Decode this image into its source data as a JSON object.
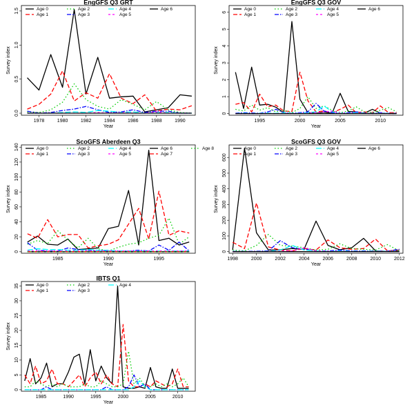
{
  "colors": {
    "Age 0": "#000000",
    "Age 1": "#ff0000",
    "Age 2": "#00cc00",
    "Age 3": "#0000ff",
    "Age 4": "#00ffff",
    "Age 5": "#ff00ff",
    "Age 6": "#000000",
    "Age 7": "#ff0000",
    "Age 8": "#00cc00"
  },
  "chart_data": [
    {
      "type": "line",
      "title": "EngGFS Q3 GRT",
      "xlabel": "Year",
      "ylabel": "Survey index",
      "xlim": [
        1976.5,
        1991.3
      ],
      "ylim": [
        -0.03,
        1.58
      ],
      "xticks": [
        1978,
        1980,
        1982,
        1984,
        1986,
        1988,
        1990
      ],
      "yticks": [
        0,
        0.5,
        1,
        1.5
      ],
      "ytick_labels": [
        "0.0",
        "0.5",
        "1.0",
        "1.5"
      ],
      "legend_columns": 3,
      "x": [
        1977,
        1978,
        1979,
        1980,
        1981,
        1982,
        1983,
        1984,
        1985,
        1986,
        1987,
        1988,
        1989,
        1990,
        1991
      ],
      "series": [
        {
          "name": "Age 0",
          "values": [
            0.52,
            0.34,
            0.86,
            0.38,
            1.52,
            0.28,
            0.82,
            0.22,
            0.24,
            0.25,
            0.02,
            0.05,
            0.08,
            0.27,
            0.25
          ]
        },
        {
          "name": "Age 1",
          "values": [
            0.06,
            0.13,
            0.28,
            0.62,
            0.18,
            0.3,
            0.22,
            0.58,
            0.22,
            0.14,
            0.27,
            0.03,
            0.06,
            0.05,
            0.11
          ]
        },
        {
          "name": "Age 2",
          "values": [
            0.02,
            0.01,
            0.05,
            0.16,
            0.43,
            0.2,
            0.1,
            0.06,
            0.2,
            0.13,
            0.05,
            0.17,
            0.05,
            0.01,
            0.0
          ]
        },
        {
          "name": "Age 3",
          "values": [
            0.03,
            0.0,
            0.01,
            0.04,
            0.06,
            0.1,
            0.05,
            0.01,
            0.02,
            0.05,
            0.01,
            0.03,
            0.03,
            0.0,
            0.0
          ]
        },
        {
          "name": "Age 4",
          "values": [
            0.0,
            0.0,
            0.0,
            0.01,
            0.02,
            0.01,
            0.04,
            0.03,
            0.01,
            0.02,
            0.0,
            0.01,
            0.01,
            0.0,
            0.0
          ]
        },
        {
          "name": "Age 5",
          "values": [
            0.0,
            0.0,
            0.0,
            0.0,
            0.0,
            0.0,
            0.01,
            0.0,
            0.01,
            0.0,
            0.0,
            0.02,
            0.0,
            0.0,
            0.0
          ]
        },
        {
          "name": "Age 6",
          "values": [
            0.0,
            0.0,
            0.0,
            0.0,
            0.0,
            0.0,
            0.0,
            0.0,
            0.0,
            0.0,
            0.0,
            0.0,
            0.0,
            0.0,
            0.0
          ]
        }
      ]
    },
    {
      "type": "line",
      "title": "EngGFS Q3 GOV",
      "xlabel": "Year",
      "ylabel": "Survey index",
      "xlim": [
        1991.2,
        2012.8
      ],
      "ylim": [
        -0.1,
        6.4
      ],
      "xticks": [
        1995,
        2000,
        2005,
        2010
      ],
      "yticks": [
        0,
        1,
        2,
        3,
        4,
        5,
        6
      ],
      "ytick_labels": [
        "0",
        "1",
        "2",
        "3",
        "4",
        "5",
        "6"
      ],
      "legend_columns": 4,
      "x": [
        1992,
        1993,
        1994,
        1995,
        1996,
        1997,
        1998,
        1999,
        2000,
        2001,
        2002,
        2003,
        2004,
        2005,
        2006,
        2007,
        2008,
        2009,
        2010,
        2011,
        2012
      ],
      "series": [
        {
          "name": "Age 0",
          "values": [
            2.45,
            0.3,
            2.75,
            0.5,
            0.55,
            0.38,
            0.05,
            5.45,
            0.85,
            0.05,
            0.02,
            0.08,
            0.02,
            1.2,
            0.12,
            0.1,
            0.02,
            0.25,
            0.02,
            0.01,
            0.02
          ]
        },
        {
          "name": "Age 1",
          "values": [
            0.55,
            0.65,
            0.1,
            1.15,
            0.4,
            0.5,
            0.15,
            0.12,
            2.45,
            0.75,
            0.1,
            0.15,
            0.05,
            0.25,
            0.5,
            0.05,
            0.1,
            0.05,
            0.45,
            0.05,
            0.05
          ]
        },
        {
          "name": "Age 2",
          "values": [
            0.25,
            0.15,
            0.5,
            0.2,
            0.35,
            0.1,
            0.2,
            0.05,
            0.3,
            1.0,
            0.3,
            0.45,
            0.2,
            0.05,
            0.15,
            0.4,
            0.1,
            0.05,
            0.2,
            0.35,
            0.1
          ]
        },
        {
          "name": "Age 3",
          "values": [
            0.02,
            0.05,
            0.03,
            0.02,
            0.1,
            0.25,
            0.05,
            0.02,
            0.05,
            0.1,
            0.6,
            0.15,
            0.05,
            0.02,
            0.05,
            0.1,
            0.03,
            0.02,
            0.05,
            0.02,
            0.01
          ]
        },
        {
          "name": "Age 4",
          "values": [
            0.0,
            0.02,
            0.0,
            0.01,
            0.03,
            0.02,
            0.05,
            0.01,
            0.02,
            0.05,
            0.1,
            0.45,
            0.1,
            0.02,
            0.02,
            0.05,
            0.02,
            0.01,
            0.02,
            0.01,
            0.0
          ]
        },
        {
          "name": "Age 5",
          "values": [
            0.0,
            0.0,
            0.0,
            0.0,
            0.01,
            0.0,
            0.02,
            0.0,
            0.01,
            0.02,
            0.05,
            0.1,
            0.15,
            0.02,
            0.01,
            0.02,
            0.01,
            0.0,
            0.01,
            0.0,
            0.0
          ]
        },
        {
          "name": "Age 6",
          "values": [
            0.0,
            0.0,
            0.0,
            0.0,
            0.0,
            0.0,
            0.0,
            0.0,
            0.0,
            0.0,
            0.0,
            0.0,
            0.0,
            0.0,
            0.0,
            0.0,
            0.0,
            0.0,
            0.0,
            0.0,
            0.0
          ]
        }
      ]
    },
    {
      "type": "line",
      "title": "ScoGFS Aberdeen Q3",
      "xlabel": "Year",
      "ylabel": "Survey index",
      "xlim": [
        1981.4,
        1998.6
      ],
      "ylim": [
        -2,
        143
      ],
      "xticks": [
        1985,
        1990,
        1995
      ],
      "yticks": [
        0,
        20,
        40,
        60,
        80,
        100,
        120,
        140
      ],
      "ytick_labels": [
        "0",
        "20",
        "40",
        "60",
        "80",
        "100",
        "120",
        "140"
      ],
      "legend_columns": 5,
      "x": [
        1982,
        1983,
        1984,
        1985,
        1986,
        1987,
        1988,
        1989,
        1990,
        1991,
        1992,
        1993,
        1994,
        1995,
        1996,
        1997,
        1998
      ],
      "series": [
        {
          "name": "Age 0",
          "values": [
            13,
            21,
            10,
            9,
            17,
            3,
            4,
            5,
            31,
            34,
            82,
            9,
            136,
            15,
            18,
            9,
            13
          ]
        },
        {
          "name": "Age 1",
          "values": [
            24,
            18,
            43,
            20,
            23,
            23,
            5,
            8,
            10,
            16,
            37,
            58,
            17,
            81,
            22,
            28,
            25
          ]
        },
        {
          "name": "Age 2",
          "values": [
            10,
            15,
            11,
            28,
            16,
            5,
            18,
            4,
            1,
            6,
            10,
            12,
            18,
            22,
            45,
            10,
            20
          ]
        },
        {
          "name": "Age 3",
          "values": [
            12,
            2,
            1,
            1,
            5,
            3,
            2,
            2,
            1,
            1,
            1,
            2,
            1,
            9,
            2,
            13,
            1
          ]
        },
        {
          "name": "Age 4",
          "values": [
            2,
            4,
            3,
            3,
            2,
            2,
            3,
            2,
            2,
            1,
            1,
            1,
            1,
            1,
            1,
            1,
            1
          ]
        },
        {
          "name": "Age 5",
          "values": [
            1,
            1,
            1,
            1,
            1,
            1,
            1,
            1,
            1,
            1,
            1,
            1,
            1,
            1,
            1,
            1,
            1
          ]
        },
        {
          "name": "Age 6",
          "values": [
            0,
            0,
            0,
            0,
            0,
            0,
            0,
            0,
            0,
            0,
            0,
            0,
            0,
            0,
            0,
            0,
            0
          ]
        },
        {
          "name": "Age 7",
          "values": [
            0,
            0,
            0,
            0,
            0,
            0,
            0,
            0,
            0,
            0,
            0,
            0,
            0,
            0,
            0,
            0,
            0
          ]
        },
        {
          "name": "Age 8",
          "values": [
            0,
            0,
            0,
            0,
            0,
            0,
            0,
            0,
            0,
            0,
            0,
            0,
            0,
            0,
            0,
            0,
            0
          ]
        }
      ]
    },
    {
      "type": "line",
      "title": "ScoGFS Q3 GOV",
      "xlabel": "Year",
      "ylabel": "Survey index",
      "xlim": [
        1997.7,
        2012.3
      ],
      "ylim": [
        -10,
        680
      ],
      "xticks": [
        1998,
        2000,
        2002,
        2004,
        2006,
        2008,
        2010,
        2012
      ],
      "yticks": [
        0,
        100,
        200,
        300,
        400,
        500,
        600
      ],
      "ytick_labels": [
        "0",
        "100",
        "200",
        "300",
        "400",
        "500",
        "600"
      ],
      "legend_columns": 4,
      "x": [
        1998,
        1999,
        2000,
        2001,
        2002,
        2003,
        2004,
        2005,
        2006,
        2007,
        2008,
        2009,
        2010,
        2011,
        2012
      ],
      "series": [
        {
          "name": "Age 0",
          "values": [
            12,
            660,
            120,
            10,
            12,
            20,
            15,
            195,
            40,
            12,
            25,
            85,
            5,
            2,
            3
          ]
        },
        {
          "name": "Age 1",
          "values": [
            60,
            20,
            310,
            30,
            10,
            5,
            20,
            10,
            75,
            25,
            15,
            20,
            80,
            5,
            10
          ]
        },
        {
          "name": "Age 2",
          "values": [
            10,
            5,
            40,
            110,
            40,
            35,
            25,
            10,
            15,
            50,
            20,
            15,
            10,
            45,
            5
          ]
        },
        {
          "name": "Age 3",
          "values": [
            2,
            2,
            3,
            5,
            70,
            25,
            15,
            5,
            5,
            10,
            5,
            5,
            3,
            3,
            15
          ]
        },
        {
          "name": "Age 4",
          "values": [
            1,
            1,
            1,
            2,
            10,
            40,
            10,
            5,
            2,
            5,
            2,
            2,
            2,
            2,
            2
          ]
        },
        {
          "name": "Age 5",
          "values": [
            0,
            0,
            1,
            1,
            3,
            5,
            25,
            5,
            2,
            2,
            1,
            1,
            1,
            1,
            1
          ]
        },
        {
          "name": "Age 6",
          "values": [
            0,
            0,
            0,
            0,
            0,
            0,
            0,
            0,
            0,
            0,
            0,
            0,
            0,
            0,
            0
          ]
        }
      ]
    },
    {
      "type": "line",
      "title": "IBTS Q1",
      "xlabel": "Year",
      "ylabel": "Survey index",
      "xlim": [
        1981.4,
        2013.2
      ],
      "ylim": [
        -0.5,
        36.5
      ],
      "xticks": [
        1985,
        1990,
        1995,
        2000,
        2005,
        2010
      ],
      "yticks": [
        0,
        5,
        10,
        15,
        20,
        25,
        30,
        35
      ],
      "ytick_labels": [
        "0",
        "5",
        "10",
        "15",
        "20",
        "25",
        "30",
        "35"
      ],
      "legend_columns": 5,
      "x": [
        1982,
        1983,
        1984,
        1985,
        1986,
        1987,
        1988,
        1989,
        1990,
        1991,
        1992,
        1993,
        1994,
        1995,
        1996,
        1997,
        1998,
        1999,
        2000,
        2001,
        2002,
        2003,
        2004,
        2005,
        2006,
        2007,
        2008,
        2009,
        2010,
        2011,
        2012
      ],
      "series": [
        {
          "name": "Age 0",
          "values": [
            3,
            10.5,
            2,
            4,
            9,
            1,
            2,
            2,
            6,
            11,
            12,
            2,
            13.5,
            3,
            8,
            4,
            2,
            35,
            1,
            0.5,
            0.5,
            1,
            0.5,
            7.5,
            1,
            0.5,
            0.5,
            7,
            0.5,
            0.5,
            0.5
          ]
        },
        {
          "name": "Age 1",
          "values": [
            5,
            2,
            8,
            2,
            3,
            7,
            2,
            2,
            1,
            3,
            5,
            1,
            4,
            6,
            2,
            5,
            2,
            1,
            22,
            3,
            1,
            1,
            2,
            1,
            3,
            2,
            1,
            2,
            7,
            1,
            1
          ]
        },
        {
          "name": "Age 2",
          "values": [
            1,
            1,
            3,
            2,
            1,
            2,
            1,
            2,
            1,
            1,
            1,
            2,
            1,
            1,
            3,
            2,
            1,
            1,
            2,
            13,
            2,
            4,
            1,
            1,
            2,
            1,
            2,
            1,
            2,
            4,
            1
          ]
        },
        {
          "name": "Age 3",
          "values": [
            0,
            0,
            0,
            0,
            1,
            0,
            0,
            0,
            0,
            0,
            0,
            0,
            0,
            0,
            0,
            1,
            0,
            0,
            0,
            1,
            5,
            1,
            2,
            0,
            0,
            0,
            0,
            0,
            0,
            0,
            0
          ]
        },
        {
          "name": "Age 4",
          "values": [
            0,
            0,
            0,
            0,
            0,
            0,
            0,
            0,
            0,
            0,
            0,
            0,
            0,
            0,
            0,
            0,
            0,
            0,
            0,
            0,
            1,
            3,
            1,
            0,
            0,
            0,
            0,
            0,
            0,
            0,
            0
          ]
        }
      ]
    }
  ]
}
